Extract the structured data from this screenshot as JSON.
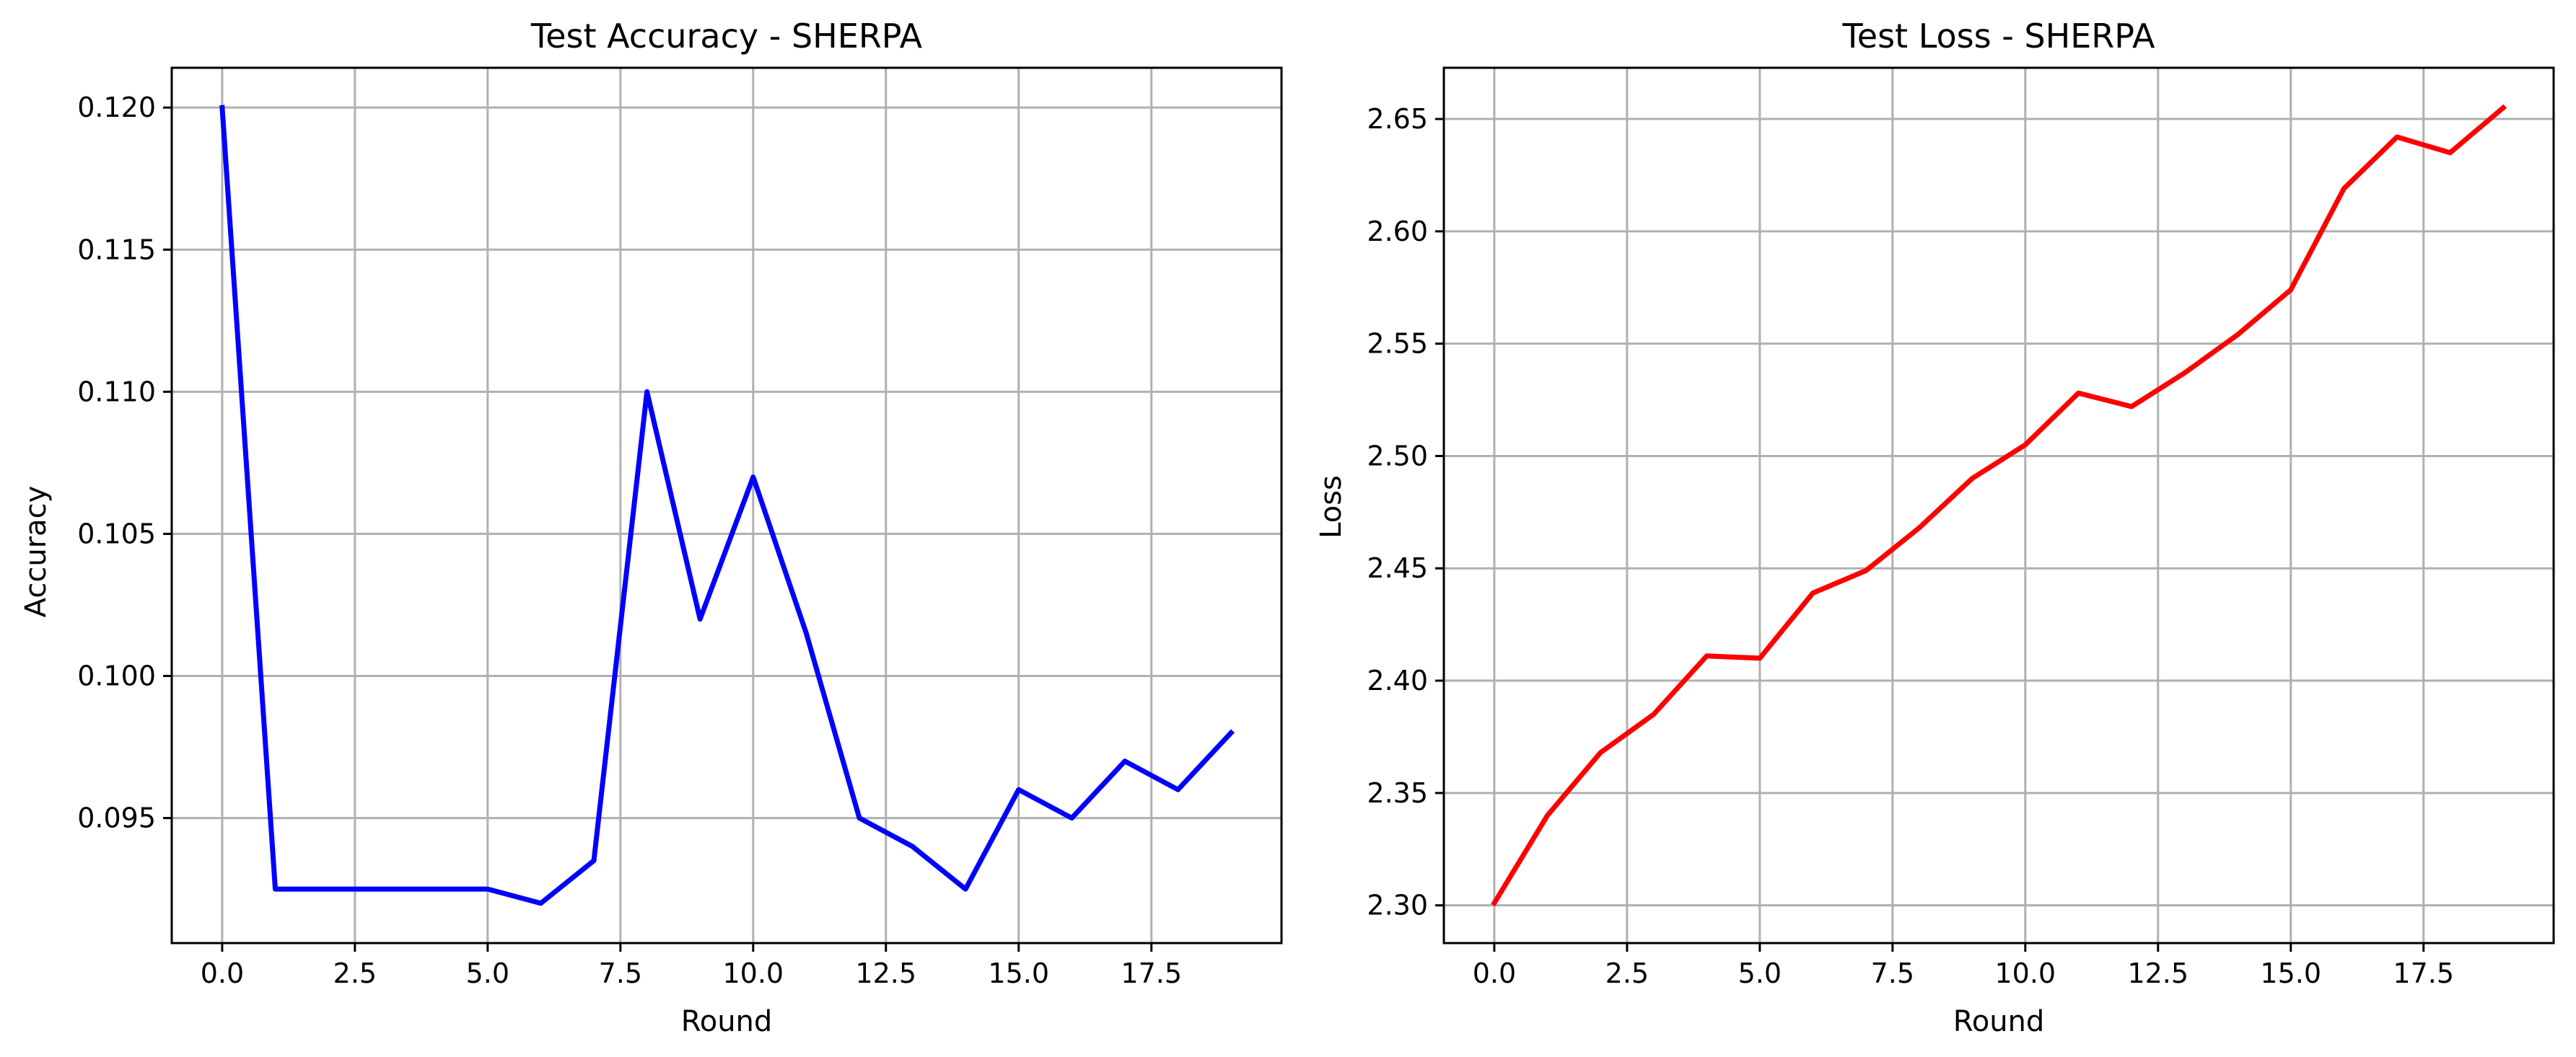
{
  "chart_data": [
    {
      "type": "line",
      "title": "Test Accuracy - SHERPA",
      "xlabel": "Round",
      "ylabel": "Accuracy",
      "x": [
        0,
        1,
        2,
        3,
        4,
        5,
        6,
        7,
        8,
        9,
        10,
        11,
        12,
        13,
        14,
        15,
        16,
        17,
        18,
        19
      ],
      "series": [
        {
          "color": "#0000ff",
          "values": [
            0.12,
            0.0925,
            0.0925,
            0.0925,
            0.0925,
            0.0925,
            0.092,
            0.0935,
            0.11,
            0.102,
            0.107,
            0.1015,
            0.095,
            0.094,
            0.0925,
            0.096,
            0.095,
            0.097,
            0.096,
            0.098
          ]
        }
      ],
      "xlim": [
        -0.95,
        19.95
      ],
      "ylim": [
        0.0906,
        0.1214
      ],
      "xticks": [
        0.0,
        2.5,
        5.0,
        7.5,
        10.0,
        12.5,
        15.0,
        17.5
      ],
      "xtick_labels": [
        "0.0",
        "2.5",
        "5.0",
        "7.5",
        "10.0",
        "12.5",
        "15.0",
        "17.5"
      ],
      "yticks": [
        0.095,
        0.1,
        0.105,
        0.11,
        0.115,
        0.12
      ],
      "ytick_labels": [
        "0.095",
        "0.100",
        "0.105",
        "0.110",
        "0.115",
        "0.120"
      ],
      "grid": true
    },
    {
      "type": "line",
      "title": "Test Loss - SHERPA",
      "xlabel": "Round",
      "ylabel": "Loss",
      "x": [
        0,
        1,
        2,
        3,
        4,
        5,
        6,
        7,
        8,
        9,
        10,
        11,
        12,
        13,
        14,
        15,
        16,
        17,
        18,
        19
      ],
      "series": [
        {
          "color": "#ff0000",
          "values": [
            2.301,
            2.34,
            2.368,
            2.385,
            2.411,
            2.41,
            2.439,
            2.449,
            2.468,
            2.49,
            2.505,
            2.528,
            2.522,
            2.537,
            2.554,
            2.574,
            2.619,
            2.642,
            2.635,
            2.655
          ]
        }
      ],
      "xlim": [
        -0.95,
        19.95
      ],
      "ylim": [
        2.2832,
        2.6728
      ],
      "xticks": [
        0.0,
        2.5,
        5.0,
        7.5,
        10.0,
        12.5,
        15.0,
        17.5
      ],
      "xtick_labels": [
        "0.0",
        "2.5",
        "5.0",
        "7.5",
        "10.0",
        "12.5",
        "15.0",
        "17.5"
      ],
      "yticks": [
        2.3,
        2.35,
        2.4,
        2.45,
        2.5,
        2.55,
        2.6,
        2.65
      ],
      "ytick_labels": [
        "2.30",
        "2.35",
        "2.40",
        "2.45",
        "2.50",
        "2.55",
        "2.60",
        "2.65"
      ],
      "grid": true
    }
  ]
}
